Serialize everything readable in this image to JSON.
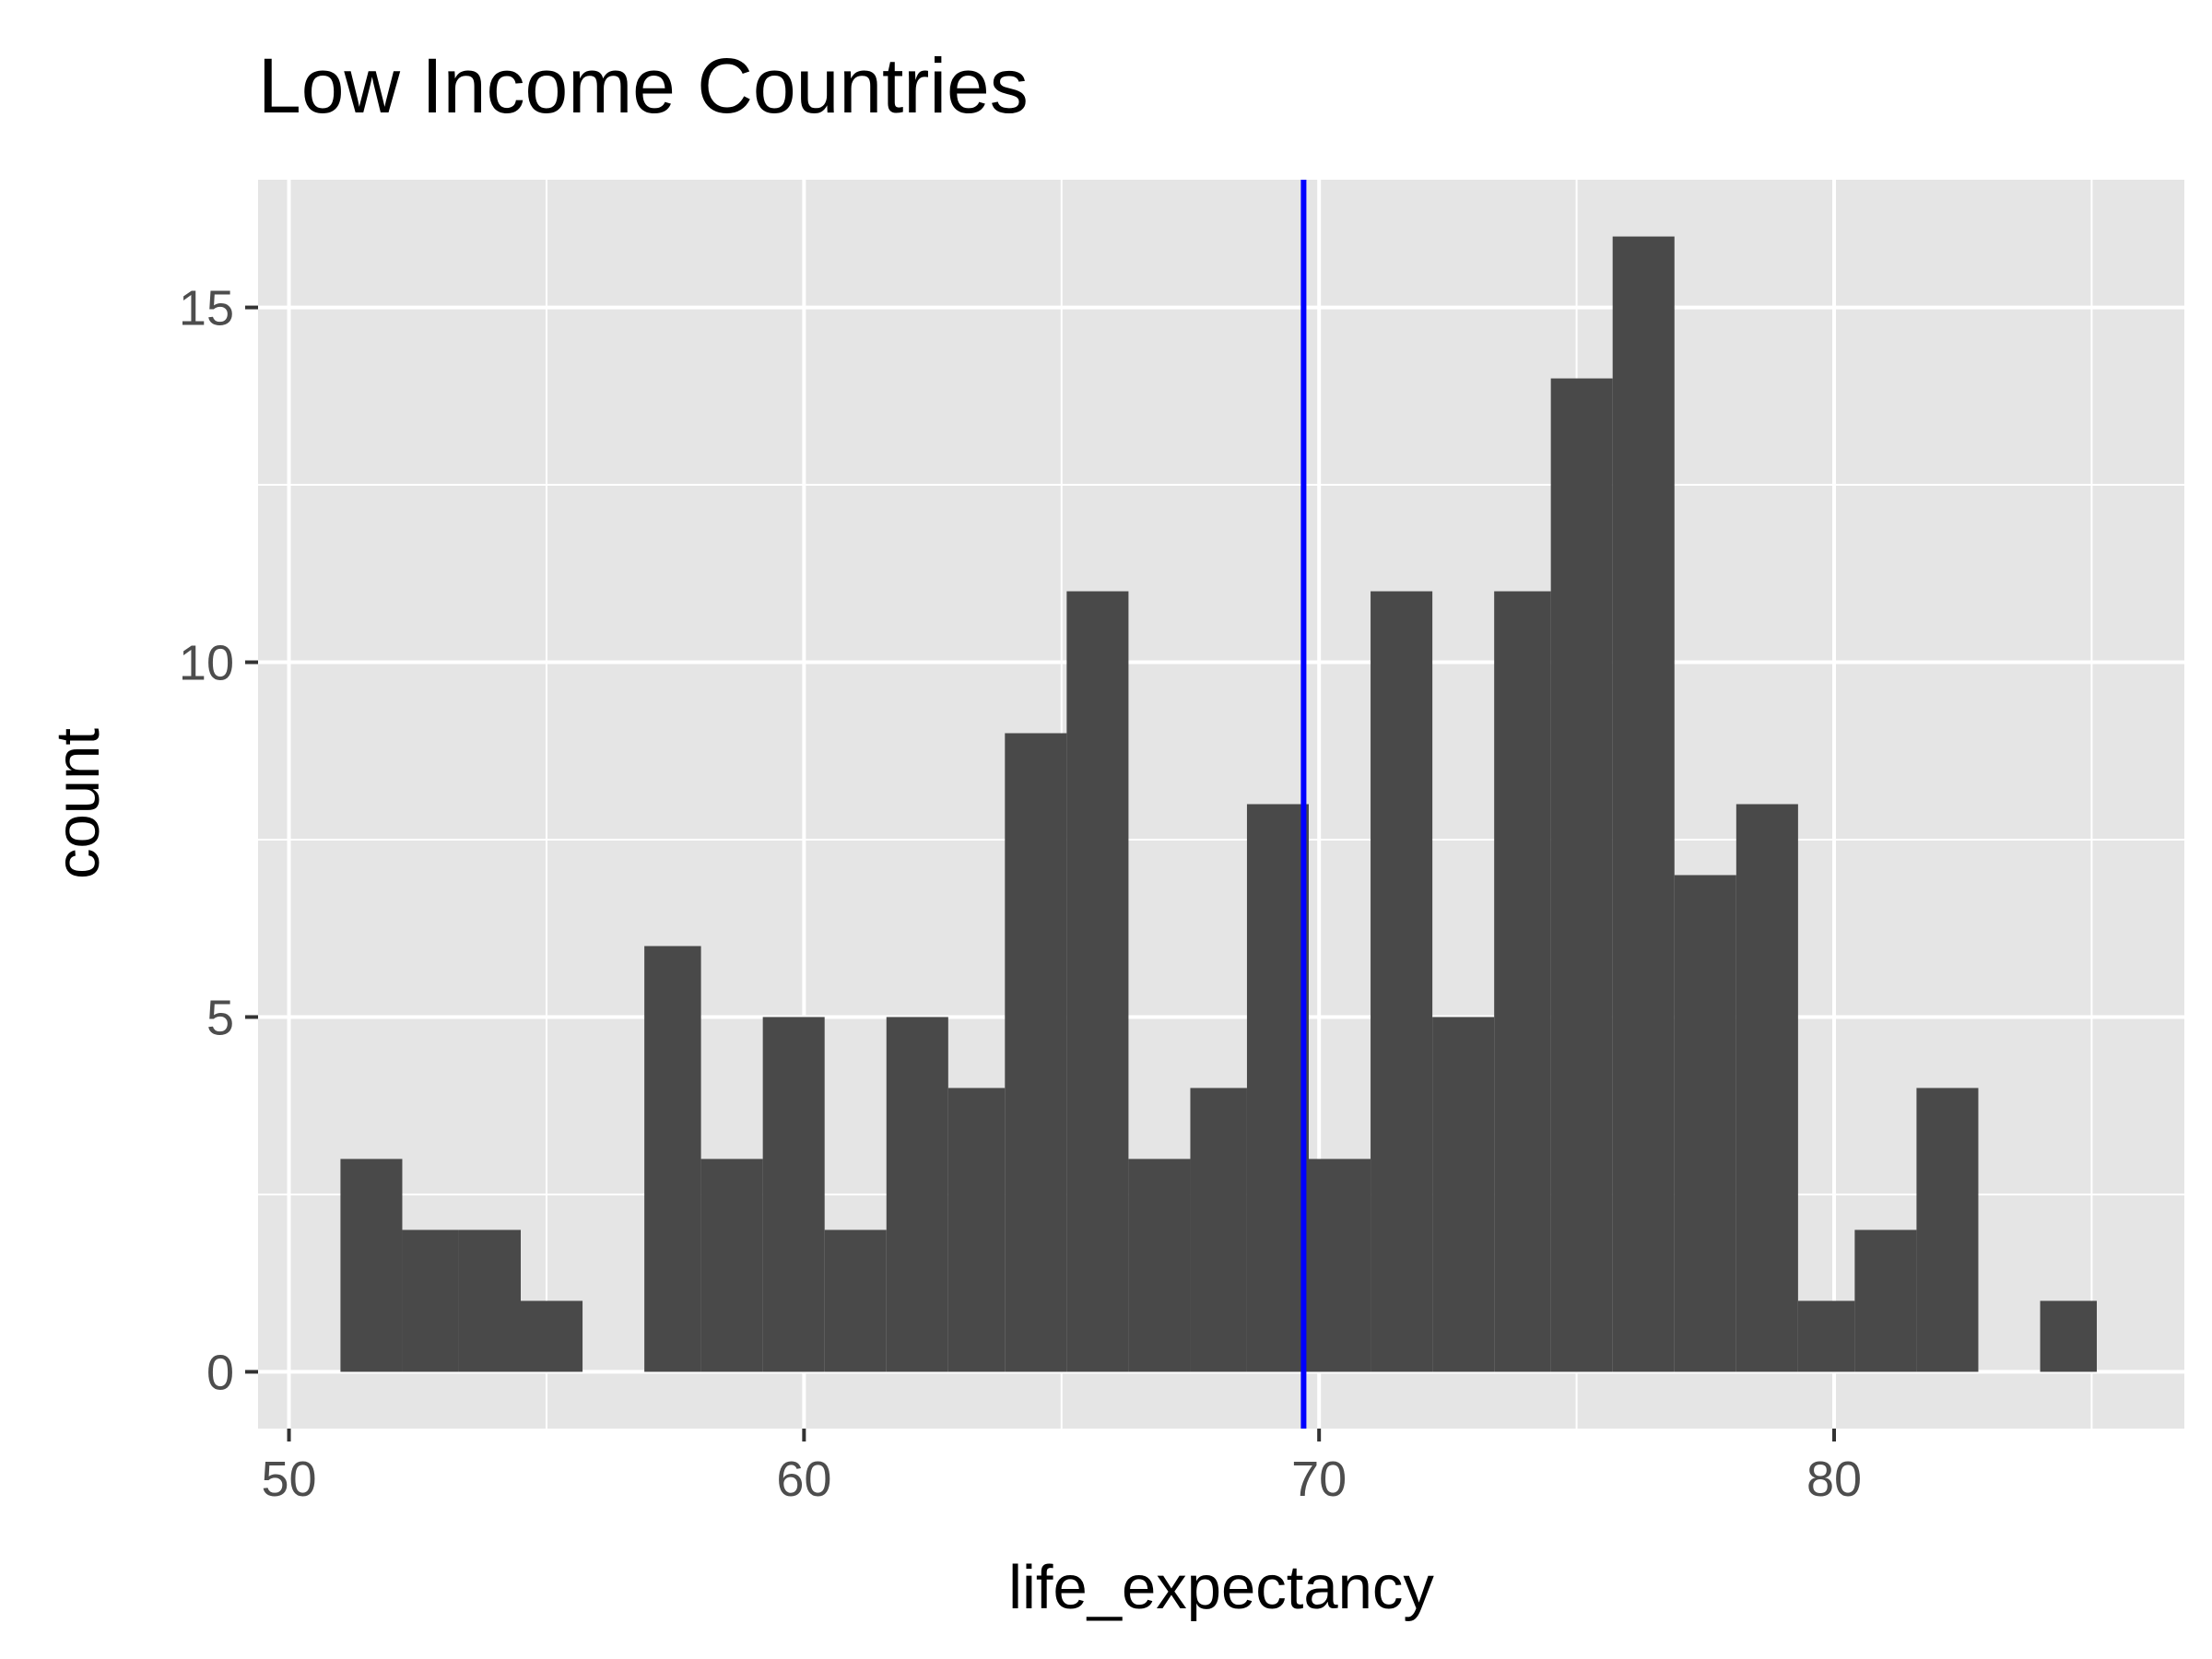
{
  "chart_data": {
    "type": "bar",
    "subtype": "histogram",
    "title": "Low Income Countries",
    "xlabel": "life_expectancy",
    "ylabel": "count",
    "xlim": [
      49.4,
      86.8
    ],
    "ylim": [
      -0.8,
      16.8
    ],
    "x_ticks": [
      50,
      60,
      70,
      80
    ],
    "y_ticks": [
      0,
      5,
      10,
      15
    ],
    "grid": true,
    "colors": {
      "panel_background": "#e5e5e5",
      "grid_line": "#ffffff",
      "bar_fill": "#494949",
      "reference_line": "#0000ff"
    },
    "bins": [
      {
        "x_start": 51.0,
        "x_end": 52.2,
        "count": 3
      },
      {
        "x_start": 52.2,
        "x_end": 53.3,
        "count": 2
      },
      {
        "x_start": 53.3,
        "x_end": 54.5,
        "count": 2
      },
      {
        "x_start": 54.5,
        "x_end": 55.7,
        "count": 1
      },
      {
        "x_start": 55.7,
        "x_end": 56.9,
        "count": 0
      },
      {
        "x_start": 56.9,
        "x_end": 58.0,
        "count": 6
      },
      {
        "x_start": 58.0,
        "x_end": 59.2,
        "count": 3
      },
      {
        "x_start": 59.2,
        "x_end": 60.4,
        "count": 5
      },
      {
        "x_start": 60.4,
        "x_end": 61.6,
        "count": 2
      },
      {
        "x_start": 61.6,
        "x_end": 62.8,
        "count": 5
      },
      {
        "x_start": 62.8,
        "x_end": 63.9,
        "count": 4
      },
      {
        "x_start": 63.9,
        "x_end": 65.1,
        "count": 9
      },
      {
        "x_start": 65.1,
        "x_end": 66.3,
        "count": 11
      },
      {
        "x_start": 66.3,
        "x_end": 67.5,
        "count": 3
      },
      {
        "x_start": 67.5,
        "x_end": 68.6,
        "count": 4
      },
      {
        "x_start": 68.6,
        "x_end": 69.8,
        "count": 8
      },
      {
        "x_start": 69.8,
        "x_end": 71.0,
        "count": 3
      },
      {
        "x_start": 71.0,
        "x_end": 72.2,
        "count": 11
      },
      {
        "x_start": 72.2,
        "x_end": 73.4,
        "count": 5
      },
      {
        "x_start": 73.4,
        "x_end": 74.5,
        "count": 11
      },
      {
        "x_start": 74.5,
        "x_end": 75.7,
        "count": 14
      },
      {
        "x_start": 75.7,
        "x_end": 76.9,
        "count": 16
      },
      {
        "x_start": 76.9,
        "x_end": 78.1,
        "count": 7
      },
      {
        "x_start": 78.1,
        "x_end": 79.3,
        "count": 8
      },
      {
        "x_start": 79.3,
        "x_end": 80.4,
        "count": 1
      },
      {
        "x_start": 80.4,
        "x_end": 81.6,
        "count": 2
      },
      {
        "x_start": 81.6,
        "x_end": 82.8,
        "count": 4
      },
      {
        "x_start": 82.8,
        "x_end": 84.0,
        "count": 0
      },
      {
        "x_start": 84.0,
        "x_end": 85.1,
        "count": 1
      }
    ],
    "reference_line": {
      "orientation": "vertical",
      "x": 69.7
    }
  }
}
